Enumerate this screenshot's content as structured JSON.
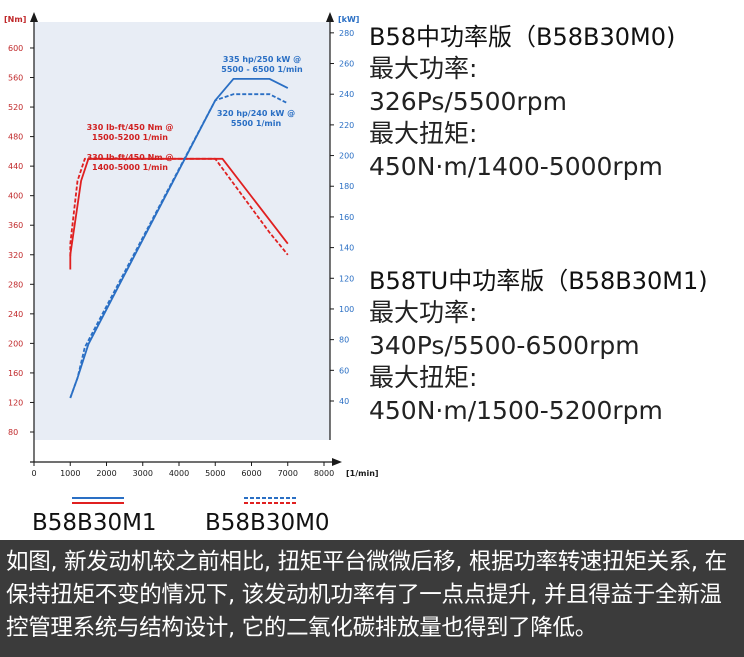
{
  "chart_data": {
    "type": "line",
    "x_unit": "[1/min]",
    "left_unit": "[Nm]",
    "right_unit": "[kW]",
    "x_ticks": [
      0,
      1000,
      2000,
      3000,
      4000,
      5000,
      6000,
      7000,
      8000
    ],
    "left_ticks": [
      80,
      120,
      160,
      200,
      240,
      280,
      320,
      360,
      400,
      440,
      480,
      520,
      560,
      600
    ],
    "right_ticks": [
      40,
      60,
      80,
      100,
      120,
      140,
      160,
      180,
      200,
      220,
      240,
      260,
      280
    ],
    "xlim": [
      0,
      8000
    ],
    "left_ylim": [
      80,
      600
    ],
    "right_ylim": [
      40,
      280
    ],
    "series": [
      {
        "name": "B58B30M1",
        "kind": "torque",
        "style": "solid",
        "color": "#e02020",
        "axis": "left",
        "x": [
          1000,
          1000,
          1300,
          1500,
          5200,
          7000
        ],
        "y": [
          300,
          320,
          420,
          450,
          450,
          335
        ]
      },
      {
        "name": "B58B30M0",
        "kind": "torque",
        "style": "dashed",
        "color": "#e02020",
        "axis": "left",
        "x": [
          1000,
          1000,
          1200,
          1400,
          5000,
          6500,
          7000
        ],
        "y": [
          318,
          335,
          420,
          450,
          450,
          350,
          320
        ]
      },
      {
        "name": "B58B30M1",
        "kind": "power",
        "style": "solid",
        "color": "#2a6fc4",
        "axis": "right",
        "x": [
          1000,
          1200,
          1500,
          5000,
          5500,
          6500,
          7000
        ],
        "y": [
          42,
          55,
          77,
          236,
          250,
          250,
          244
        ]
      },
      {
        "name": "B58B30M0",
        "kind": "power",
        "style": "dashed",
        "color": "#2a6fc4",
        "axis": "right",
        "x": [
          1000,
          1200,
          1400,
          5000,
          5500,
          6500,
          7000
        ],
        "y": [
          42,
          55,
          75,
          236,
          240,
          240,
          234
        ]
      }
    ],
    "annotations": [
      {
        "lines": [
          "335 hp/250 kW @",
          "5500 - 6500 1/min"
        ],
        "color": "#2a6fc4"
      },
      {
        "lines": [
          "320 hp/240 kW @",
          "5500 1/min"
        ],
        "color": "#2a6fc4"
      },
      {
        "lines": [
          "330 lb-ft/450 Nm @",
          "1500-5200 1/min"
        ],
        "color": "#d02020"
      },
      {
        "lines": [
          "330 lb-ft/450 Nm @",
          "1400-5000 1/min"
        ],
        "color": "#d02020"
      }
    ]
  },
  "specs": {
    "m0": {
      "title": "B58中功率版（B58B30M0)",
      "power_label": "最大功率:",
      "power_value": "326Ps/5500rpm",
      "torque_label": "最大扭矩:",
      "torque_value": "450N·m/1400-5000rpm"
    },
    "m1": {
      "title": "B58TU中功率版（B58B30M1)",
      "power_label": "最大功率:",
      "power_value": "340Ps/5500-6500rpm",
      "torque_label": "最大扭矩:",
      "torque_value": "450N·m/1500-5200rpm"
    }
  },
  "legend": {
    "m1_label": "B58B30M1",
    "m0_label": "B58B30M0"
  },
  "caption": "如图, 新发动机较之前相比, 扭矩平台微微后移, 根据功率转速扭矩关系, 在保持扭矩不变的情况下, 该发动机功率有了一点点提升, 并且得益于全新温控管理系统与结构设计, 它的二氧化碳排放量也得到了降低。",
  "colors": {
    "torque": "#e02020",
    "power": "#2a6fc4",
    "plot_bg": "#e8edf5",
    "caption_bg": "#3b3b3b"
  }
}
